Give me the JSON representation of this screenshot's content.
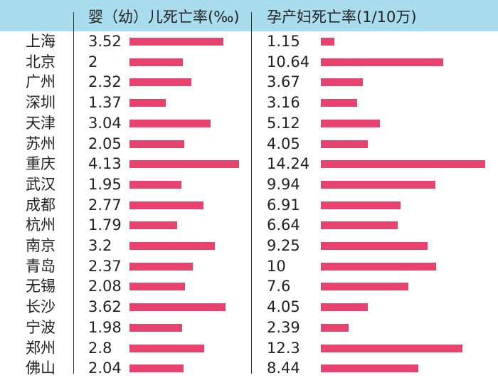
{
  "chart_data": {
    "type": "bar",
    "orientation": "horizontal",
    "categories": [
      "上海",
      "北京",
      "广州",
      "深圳",
      "天津",
      "苏州",
      "重庆",
      "武汉",
      "成都",
      "杭州",
      "南京",
      "青岛",
      "无锡",
      "长沙",
      "宁波",
      "郑州",
      "佛山"
    ],
    "series": [
      {
        "name": "婴（幼）儿死亡率(‰)",
        "labels": [
          "3.52",
          "2",
          "2.32",
          "1.37",
          "3.04",
          "2.05",
          "4.13",
          "1.95",
          "2.77",
          "1.79",
          "3.2",
          "2.37",
          "2.08",
          "3.62",
          "1.98",
          "2.8",
          "2.04"
        ],
        "values": [
          3.52,
          2,
          2.32,
          1.37,
          3.04,
          2.05,
          4.13,
          1.95,
          2.77,
          1.79,
          3.2,
          2.37,
          2.08,
          3.62,
          1.98,
          2.8,
          2.04
        ]
      },
      {
        "name": "孕产妇死亡率(1/10万)",
        "labels": [
          "1.15",
          "10.64",
          "3.67",
          "3.16",
          "5.12",
          "4.05",
          "14.24",
          "9.94",
          "6.91",
          "6.64",
          "9.25",
          "10",
          "7.6",
          "4.05",
          "2.39",
          "12.3",
          "8.44"
        ],
        "values": [
          1.15,
          10.64,
          3.67,
          3.16,
          5.12,
          4.05,
          14.24,
          9.94,
          6.91,
          6.64,
          9.25,
          10,
          7.6,
          4.05,
          2.39,
          12.3,
          8.44
        ]
      }
    ],
    "bar_color": "#e8426f",
    "header_color": "#a9dcec",
    "grid": false,
    "legend": "none"
  }
}
